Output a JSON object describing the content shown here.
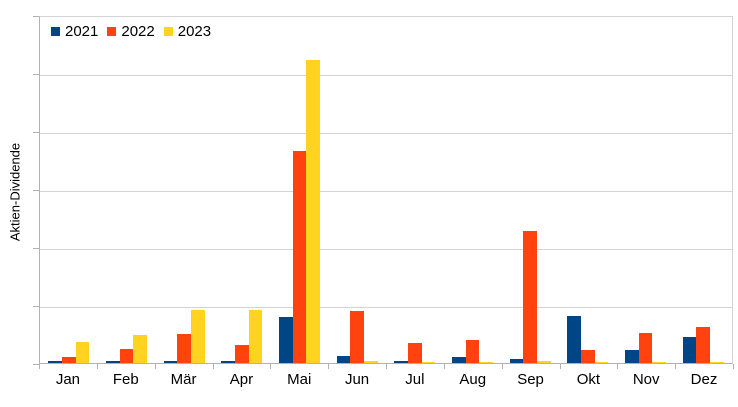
{
  "chart_data": {
    "type": "bar",
    "title": "",
    "xlabel": "",
    "ylabel": "Aktien-Dividende",
    "categories": [
      "Jan",
      "Feb",
      "Mär",
      "Apr",
      "Mai",
      "Jun",
      "Jul",
      "Aug",
      "Sep",
      "Okt",
      "Nov",
      "Dez"
    ],
    "series": [
      {
        "name": "2021",
        "color": "#004586",
        "values": [
          0.03,
          0.03,
          0.03,
          0.03,
          0.79,
          0.12,
          0.04,
          0.11,
          0.07,
          0.81,
          0.23,
          0.45
        ]
      },
      {
        "name": "2022",
        "color": "#FF420E",
        "values": [
          0.1,
          0.24,
          0.51,
          0.31,
          3.67,
          0.91,
          0.34,
          0.4,
          2.29,
          0.23,
          0.52,
          0.63
        ]
      },
      {
        "name": "2023",
        "color": "#FFD320",
        "values": [
          0.36,
          0.49,
          0.92,
          0.92,
          5.26,
          0.03,
          0.02,
          0.02,
          0.03,
          0.02,
          0.02,
          0.02
        ]
      }
    ],
    "ylim": [
      0,
      6
    ],
    "y_gridline_interval": 1,
    "y_tick_labels_visible": false,
    "grid": true,
    "legend_position": "top-left-inside",
    "legend_labels": [
      "2021",
      "2022",
      "2023"
    ]
  },
  "colors": {
    "series_2021": "#004586",
    "series_2022": "#FF420E",
    "series_2023": "#FFD320",
    "gridline": "#d3d3d3",
    "axis": "#b2b2b2",
    "background": "#ffffff",
    "text": "#000000"
  }
}
